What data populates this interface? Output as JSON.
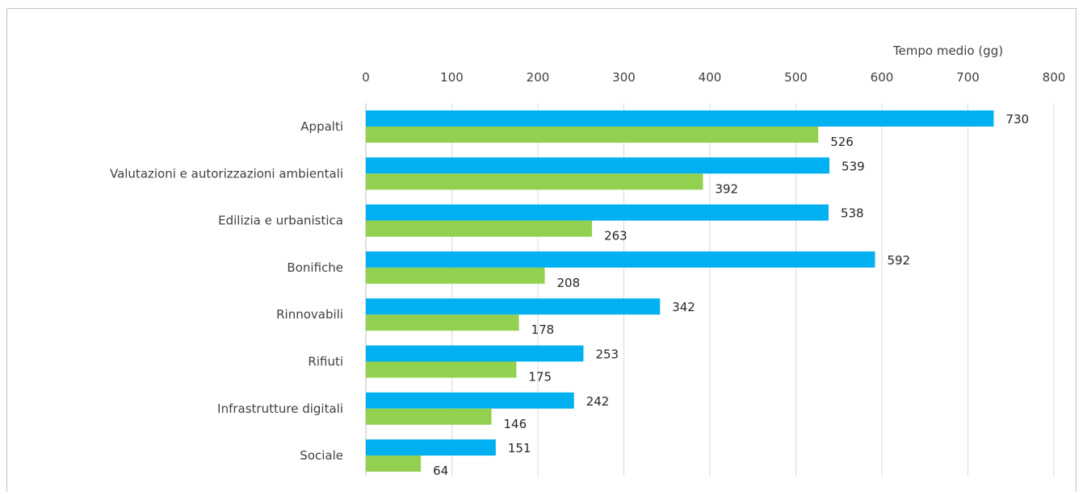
{
  "chart_data": {
    "type": "bar",
    "orientation": "horizontal",
    "xlabel": "Tempo medio (gg)",
    "xlim": [
      0,
      800
    ],
    "xticks": [
      0,
      100,
      200,
      300,
      400,
      500,
      600,
      700,
      800
    ],
    "axis_position": "top",
    "grid": true,
    "categories": [
      "Appalti",
      "Valutazioni e autorizzazioni ambientali",
      "Edilizia e urbanistica",
      "Bonifiche",
      "Rinnovabili",
      "Rifiuti",
      "Infrastrutture digitali",
      "Sociale"
    ],
    "series": [
      {
        "color": "#00b0f0",
        "values": [
          730,
          539,
          538,
          592,
          342,
          253,
          242,
          151
        ]
      },
      {
        "color": "#92d050",
        "values": [
          526,
          392,
          263,
          208,
          178,
          175,
          146,
          64
        ]
      }
    ]
  }
}
